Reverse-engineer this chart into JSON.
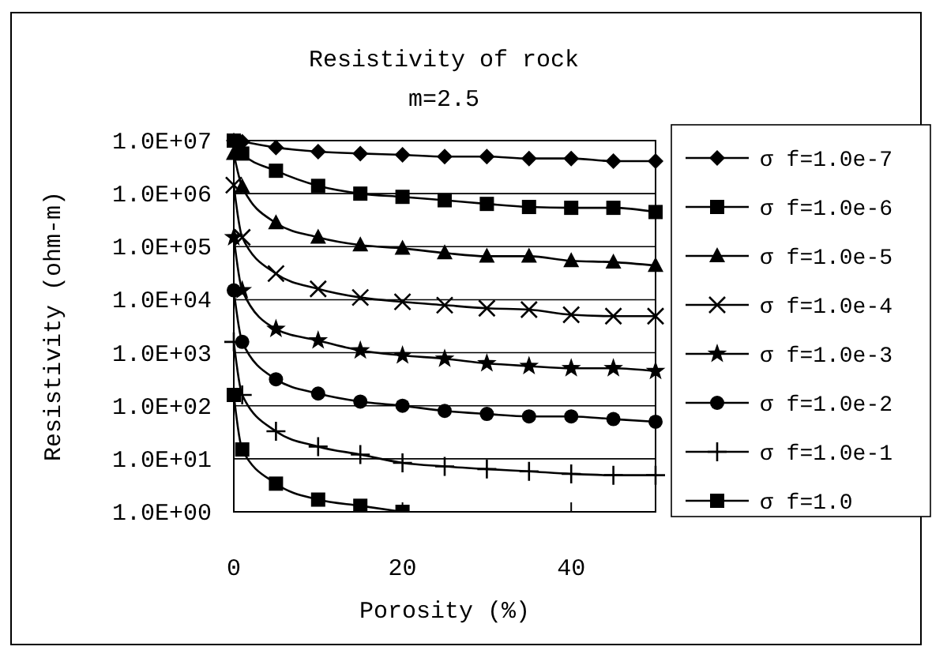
{
  "chart_data": {
    "type": "line",
    "title": "Resistivity of rock",
    "subtitle": "m=2.5",
    "xlabel": "Porosity (%)",
    "ylabel": "Resistivity (ohm-m)",
    "x": [
      0,
      1,
      5,
      10,
      15,
      20,
      25,
      30,
      35,
      40,
      45,
      50
    ],
    "xlim": [
      0,
      50
    ],
    "xticks": [
      0,
      20,
      40
    ],
    "log": "y",
    "ylim": [
      1,
      10000000
    ],
    "yticks": [
      {
        "value": 1,
        "label": "1.0E+00"
      },
      {
        "value": 10,
        "label": "1.0E+01"
      },
      {
        "value": 100,
        "label": "1.0E+02"
      },
      {
        "value": 1000,
        "label": "1.0E+03"
      },
      {
        "value": 10000,
        "label": "1.0E+04"
      },
      {
        "value": 100000,
        "label": "1.0E+05"
      },
      {
        "value": 1000000,
        "label": "1.0E+06"
      },
      {
        "value": 10000000,
        "label": "1.0E+07"
      }
    ],
    "grid": "y",
    "legend": "right",
    "line_style": "solid",
    "series": [
      {
        "name": "σ f=1.0e-7",
        "color": "#000000",
        "marker": "diamond",
        "values": [
          10000000,
          9500000,
          7400000,
          6200000,
          5700000,
          5400000,
          5000000,
          5000000,
          4600000,
          4600000,
          4100000,
          4100000
        ]
      },
      {
        "name": "σ f=1.0e-6",
        "color": "#000000",
        "marker": "square",
        "values": [
          10000000,
          5700000,
          2700000,
          1400000,
          1000000,
          870000,
          750000,
          640000,
          560000,
          540000,
          540000,
          450000
        ]
      },
      {
        "name": "σ f=1.0e-5",
        "color": "#000000",
        "marker": "triangle",
        "values": [
          5700000,
          1350000,
          280000,
          150000,
          107000,
          93000,
          76000,
          66000,
          66000,
          54000,
          51000,
          44000
        ]
      },
      {
        "name": "σ f=1.0e-4",
        "color": "#000000",
        "marker": "cross",
        "values": [
          1450000,
          150000,
          31000,
          16000,
          11000,
          9100,
          7900,
          6900,
          6500,
          5200,
          4900,
          4900
        ]
      },
      {
        "name": "σ f=1.0e-3",
        "color": "#000000",
        "marker": "star",
        "values": [
          150000,
          15000,
          2800,
          1700,
          1100,
          890,
          770,
          630,
          560,
          510,
          510,
          450
        ]
      },
      {
        "name": "σ f=1.0e-2",
        "color": "#000000",
        "marker": "circle",
        "values": [
          15000,
          1600,
          316,
          170,
          120,
          100,
          80,
          70,
          63,
          63,
          56,
          50
        ]
      },
      {
        "name": "σ f=1.0e-1",
        "color": "#000000",
        "marker": "plus",
        "values": [
          1600,
          160,
          33,
          17,
          12,
          8.4,
          7.2,
          6.4,
          5.8,
          5.2,
          4.9,
          4.9
        ]
      },
      {
        "name": "σ f=1.0",
        "color": "#000000",
        "marker": "square",
        "values": [
          160,
          15,
          3.4,
          1.7,
          1.3,
          1.0,
          null,
          null,
          null,
          null,
          null,
          null
        ]
      }
    ]
  }
}
